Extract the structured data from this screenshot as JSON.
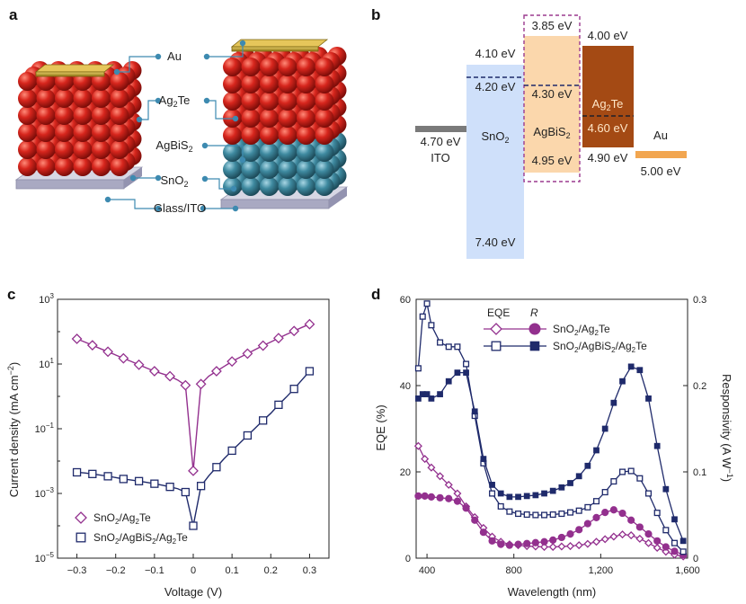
{
  "panels": {
    "a": "a",
    "b": "b",
    "c": "c",
    "d": "d"
  },
  "panel_a": {
    "labels": {
      "au": "Au",
      "ag2te": "Ag",
      "ag2te_sub": "2",
      "ag2te_end": "Te",
      "agbis2": "AgBiS",
      "agbis2_sub": "2",
      "sno2": "SnO",
      "sno2_sub": "2",
      "glass_ito": "Glass/ITO"
    },
    "colors": {
      "ag2te": "#c8241c",
      "agbis2": "#3f8aa0",
      "gold": "#c9a227",
      "glass": "#b9b9cc",
      "label_dot": "#3d8ab0"
    }
  },
  "panel_b": {
    "ito": {
      "energy": "4.70 eV",
      "name": "ITO"
    },
    "sno2": {
      "top": "4.10 eV",
      "fermi": "4.20 eV",
      "bottom": "7.40 eV",
      "name": "SnO",
      "name_sub": "2"
    },
    "agbis2": {
      "top": "3.85 eV",
      "fermi": "4.30 eV",
      "bottom": "4.95 eV",
      "name": "AgBiS",
      "name_sub": "2"
    },
    "ag2te": {
      "top": "4.00 eV",
      "fermi": "4.60 eV",
      "bottom": "4.90 eV",
      "name": "Ag",
      "name_sub": "2",
      "name_end": "Te"
    },
    "au": {
      "energy": "5.00 eV",
      "name": "Au"
    },
    "colors": {
      "sno2": "#cfe0fa",
      "agbis2": "#fbd7ac",
      "ag2te": "#a44a14",
      "au": "#f2a650",
      "ito": "#7a7a7a",
      "dashed_box": "#9b3a8f"
    }
  },
  "chart_data": [
    {
      "panel": "c",
      "type": "line",
      "xlabel": "Voltage (V)",
      "ylabel": "Current density (mA cm",
      "ylabel_sup": "−2",
      "ylabel_end": ")",
      "yscale": "log",
      "xlim": [
        -0.35,
        0.35
      ],
      "ylim_exp": [
        -5,
        3
      ],
      "x_ticks": [
        -0.3,
        -0.2,
        -0.1,
        0,
        0.1,
        0.2,
        0.3
      ],
      "x_tick_labels": [
        "−0.3",
        "−0.2",
        "−0.1",
        "0",
        "0.1",
        "0.2",
        "0.3"
      ],
      "y_tick_exps": [
        -5,
        -3,
        -1,
        1,
        3
      ],
      "y_tick_labels": [
        {
          "base": "10",
          "exp": "−5"
        },
        {
          "base": "10",
          "exp": "−3"
        },
        {
          "base": "10",
          "exp": "−1"
        },
        {
          "base": "10",
          "exp": "1"
        },
        {
          "base": "10",
          "exp": "3"
        }
      ],
      "legend_position": "bottom-left",
      "series": [
        {
          "name": "SnO2/Ag2Te",
          "label_parts": [
            "SnO",
            "2",
            "/Ag",
            "2",
            "Te"
          ],
          "color": "#93308e",
          "marker": "diamond",
          "x": [
            -0.3,
            -0.28,
            -0.26,
            -0.24,
            -0.22,
            -0.2,
            -0.18,
            -0.16,
            -0.14,
            -0.12,
            -0.1,
            -0.08,
            -0.06,
            -0.04,
            -0.02,
            0.0,
            0.02,
            0.04,
            0.06,
            0.08,
            0.1,
            0.12,
            0.14,
            0.16,
            0.18,
            0.2,
            0.22,
            0.24,
            0.26,
            0.28,
            0.3
          ],
          "y": [
            60,
            48,
            38,
            30,
            24,
            19,
            15,
            12,
            9.5,
            7.5,
            6,
            5,
            4.2,
            3.2,
            2.2,
            0.005,
            2.4,
            4.2,
            6,
            8.5,
            12,
            16,
            21,
            28,
            37,
            48,
            63,
            82,
            105,
            135,
            170
          ]
        },
        {
          "name": "SnO2/AgBiS2/Ag2Te",
          "label_parts": [
            "SnO",
            "2",
            "/AgBiS",
            "2",
            "/Ag",
            "2",
            "Te"
          ],
          "color": "#1f2a6b",
          "marker": "square",
          "x": [
            -0.3,
            -0.28,
            -0.26,
            -0.24,
            -0.22,
            -0.2,
            -0.18,
            -0.16,
            -0.14,
            -0.12,
            -0.1,
            -0.08,
            -0.06,
            -0.04,
            -0.02,
            0.0,
            0.02,
            0.04,
            0.06,
            0.08,
            0.1,
            0.12,
            0.14,
            0.16,
            0.18,
            0.2,
            0.22,
            0.24,
            0.26,
            0.28,
            0.3
          ],
          "y": [
            0.0045,
            0.0043,
            0.004,
            0.0037,
            0.0034,
            0.0031,
            0.0028,
            0.0026,
            0.0024,
            0.0022,
            0.002,
            0.0018,
            0.0016,
            0.0014,
            0.0011,
            0.0001,
            0.0017,
            0.0035,
            0.0065,
            0.012,
            0.021,
            0.036,
            0.062,
            0.105,
            0.18,
            0.3,
            0.55,
            0.95,
            1.7,
            3.2,
            6.0
          ]
        }
      ]
    },
    {
      "panel": "d",
      "type": "line",
      "xlabel": "Wavelength (nm)",
      "ylabel": "EQE (%)",
      "y2label": "Responsivity (A W",
      "y2label_sup": "−1",
      "y2label_end": ")",
      "xlim": [
        350,
        1600
      ],
      "ylim": [
        0,
        60
      ],
      "y2lim": [
        0,
        0.3
      ],
      "x_ticks": [
        400,
        800,
        1200,
        1600
      ],
      "x_tick_labels": [
        "400",
        "800",
        "1,200",
        "1,600"
      ],
      "y_ticks": [
        0,
        20,
        40,
        60
      ],
      "y_tick_labels": [
        "0",
        "20",
        "40",
        "60"
      ],
      "y2_ticks": [
        0,
        0.1,
        0.2,
        0.3
      ],
      "y2_tick_labels": [
        "0",
        "0.1",
        "0.2",
        "0.3"
      ],
      "legend": {
        "col_eqe": "EQE",
        "col_r": "R"
      },
      "legend_position": "top-center",
      "series": [
        {
          "name": "SnO2/Ag2Te EQE",
          "axis": "left",
          "color": "#93308e",
          "marker": "diamond-open",
          "x": [
            360,
            390,
            420,
            460,
            500,
            540,
            580,
            620,
            660,
            700,
            740,
            780,
            820,
            860,
            900,
            940,
            980,
            1020,
            1060,
            1100,
            1140,
            1180,
            1220,
            1260,
            1300,
            1340,
            1380,
            1420,
            1460,
            1500,
            1540,
            1580
          ],
          "y": [
            26,
            23,
            21,
            19,
            17,
            15,
            12,
            9.5,
            7,
            5,
            3.8,
            3.2,
            3.0,
            2.8,
            2.7,
            2.6,
            2.6,
            2.7,
            2.8,
            3.0,
            3.3,
            3.8,
            4.4,
            5.0,
            5.5,
            5.3,
            4.5,
            3.5,
            2.4,
            1.5,
            0.8,
            0.4
          ]
        },
        {
          "name": "SnO2/Ag2Te R",
          "axis": "right",
          "color": "#93308e",
          "marker": "circle-filled",
          "x": [
            360,
            390,
            420,
            460,
            500,
            540,
            580,
            620,
            660,
            700,
            740,
            780,
            820,
            860,
            900,
            940,
            980,
            1020,
            1060,
            1100,
            1140,
            1180,
            1220,
            1260,
            1300,
            1340,
            1380,
            1420,
            1460,
            1500,
            1540,
            1580
          ],
          "y": [
            0.072,
            0.072,
            0.071,
            0.07,
            0.069,
            0.066,
            0.058,
            0.044,
            0.03,
            0.02,
            0.016,
            0.015,
            0.016,
            0.017,
            0.018,
            0.019,
            0.021,
            0.024,
            0.028,
            0.033,
            0.04,
            0.047,
            0.053,
            0.056,
            0.052,
            0.044,
            0.036,
            0.028,
            0.02,
            0.013,
            0.008,
            0.004
          ]
        },
        {
          "name": "SnO2/AgBiS2/Ag2Te EQE",
          "axis": "left",
          "color": "#1f2a6b",
          "marker": "square-open",
          "x": [
            360,
            380,
            400,
            420,
            460,
            500,
            540,
            580,
            620,
            660,
            700,
            740,
            780,
            820,
            860,
            900,
            940,
            980,
            1020,
            1060,
            1100,
            1140,
            1180,
            1220,
            1260,
            1300,
            1340,
            1380,
            1420,
            1460,
            1500,
            1540,
            1580
          ],
          "y": [
            44,
            56,
            59,
            54,
            50,
            49,
            49,
            45,
            33,
            22,
            15,
            12,
            10.8,
            10.3,
            10.1,
            10.0,
            10.0,
            10.1,
            10.3,
            10.6,
            11.0,
            11.8,
            13.2,
            15.3,
            17.8,
            20.0,
            20.2,
            18.5,
            15.0,
            10.5,
            6.5,
            3.5,
            1.5
          ]
        },
        {
          "name": "SnO2/AgBiS2/Ag2Te R",
          "axis": "right",
          "color": "#1f2a6b",
          "marker": "square-filled",
          "x": [
            360,
            380,
            400,
            420,
            460,
            500,
            540,
            580,
            620,
            660,
            700,
            740,
            780,
            820,
            860,
            900,
            940,
            980,
            1020,
            1060,
            1100,
            1140,
            1180,
            1220,
            1260,
            1300,
            1340,
            1380,
            1420,
            1460,
            1500,
            1540,
            1580
          ],
          "y": [
            0.185,
            0.19,
            0.19,
            0.185,
            0.19,
            0.205,
            0.215,
            0.215,
            0.17,
            0.115,
            0.085,
            0.075,
            0.071,
            0.071,
            0.072,
            0.073,
            0.075,
            0.078,
            0.082,
            0.087,
            0.095,
            0.107,
            0.125,
            0.15,
            0.18,
            0.205,
            0.222,
            0.218,
            0.185,
            0.13,
            0.08,
            0.045,
            0.02
          ]
        }
      ]
    }
  ]
}
